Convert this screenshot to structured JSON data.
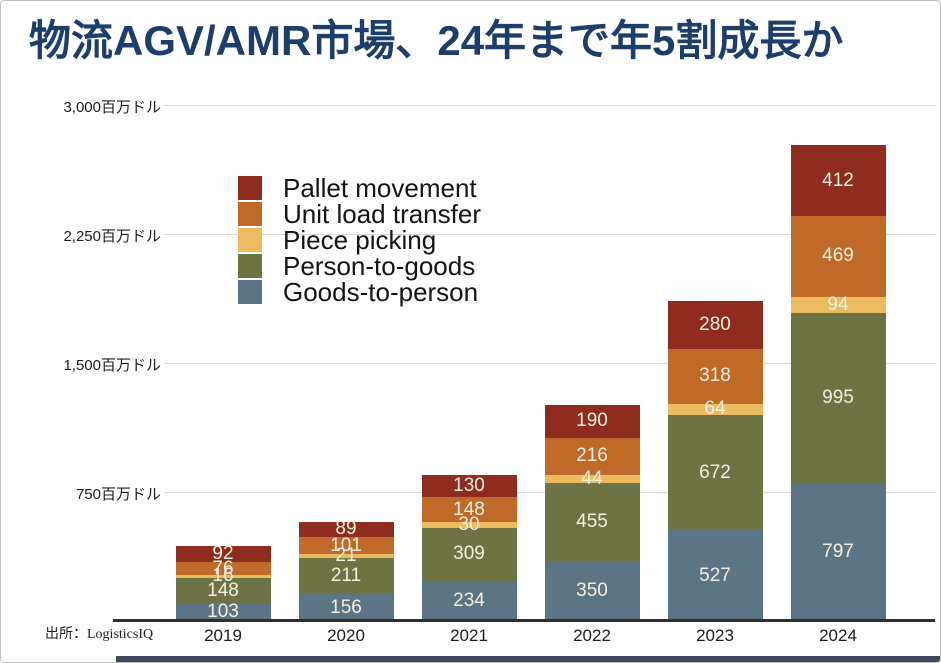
{
  "title": "物流AGV/AMR市場、24年まで年5割成長か",
  "source": "出所：LogisticsIQ",
  "y_axis": {
    "ticks": [
      {
        "label": "3,000百万ドル",
        "value": 3000
      },
      {
        "label": "2,250百万ドル",
        "value": 2250
      },
      {
        "label": "1,500百万ドル",
        "value": 1500
      },
      {
        "label": "750百万ドル",
        "value": 750
      }
    ]
  },
  "chart_data": {
    "type": "bar",
    "stacked": true,
    "title": "物流AGV/AMR市場、24年まで年5割成長か",
    "unit": "百万ドル",
    "categories": [
      "2019",
      "2020",
      "2021",
      "2022",
      "2023",
      "2024"
    ],
    "series": [
      {
        "name": "Goods-to-person",
        "color": "#5b7584",
        "values": [
          103,
          156,
          234,
          350,
          527,
          797
        ]
      },
      {
        "name": "Person-to-goods",
        "color": "#6e7343",
        "values": [
          148,
          211,
          309,
          455,
          672,
          995
        ]
      },
      {
        "name": "Piece picking",
        "color": "#eabc5f",
        "values": [
          16,
          21,
          30,
          44,
          64,
          94
        ]
      },
      {
        "name": "Unit load transfer",
        "color": "#bf6a28",
        "values": [
          76,
          101,
          148,
          216,
          318,
          469
        ]
      },
      {
        "name": "Pallet movement",
        "color": "#8e2d1f",
        "values": [
          92,
          89,
          130,
          190,
          280,
          412
        ]
      }
    ],
    "legend_order": [
      "Pallet movement",
      "Unit load transfer",
      "Piece picking",
      "Person-to-goods",
      "Goods-to-person"
    ],
    "ylim": [
      0,
      3000
    ],
    "grid": true,
    "legend_position": "upper-left-inside"
  },
  "colors": {
    "title": "#1d3d6b",
    "axis_line": "#2e2e2e",
    "gridline": "#dadada",
    "bar_label": "#f5efdf",
    "bottom_bar": "#3e4a57"
  }
}
